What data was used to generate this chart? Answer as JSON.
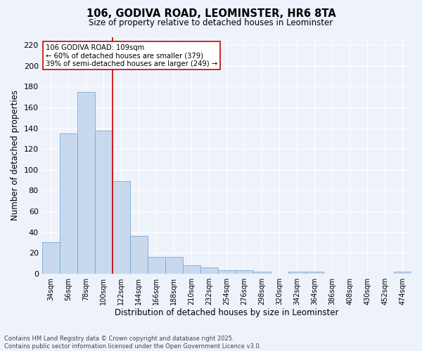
{
  "title_line1": "106, GODIVA ROAD, LEOMINSTER, HR6 8TA",
  "title_line2": "Size of property relative to detached houses in Leominster",
  "xlabel": "Distribution of detached houses by size in Leominster",
  "ylabel": "Number of detached properties",
  "categories": [
    "34sqm",
    "56sqm",
    "78sqm",
    "100sqm",
    "122sqm",
    "144sqm",
    "166sqm",
    "188sqm",
    "210sqm",
    "232sqm",
    "254sqm",
    "276sqm",
    "298sqm",
    "320sqm",
    "342sqm",
    "364sqm",
    "386sqm",
    "408sqm",
    "430sqm",
    "452sqm",
    "474sqm"
  ],
  "values": [
    30,
    135,
    175,
    138,
    89,
    36,
    16,
    16,
    8,
    6,
    3,
    3,
    2,
    0,
    2,
    2,
    0,
    0,
    0,
    0,
    2
  ],
  "bar_color": "#c8d9ee",
  "bar_edge_color": "#7aaad4",
  "background_color": "#eef2fb",
  "grid_color": "#ffffff",
  "vline_x": 3.5,
  "vline_color": "#cc0000",
  "annotation_text": "106 GODIVA ROAD: 109sqm\n← 60% of detached houses are smaller (379)\n39% of semi-detached houses are larger (249) →",
  "annotation_box_color": "#ffffff",
  "annotation_box_edge": "#cc0000",
  "ylim": [
    0,
    228
  ],
  "yticks": [
    0,
    20,
    40,
    60,
    80,
    100,
    120,
    140,
    160,
    180,
    200,
    220
  ],
  "footnote_line1": "Contains HM Land Registry data © Crown copyright and database right 2025.",
  "footnote_line2": "Contains public sector information licensed under the Open Government Licence v3.0."
}
